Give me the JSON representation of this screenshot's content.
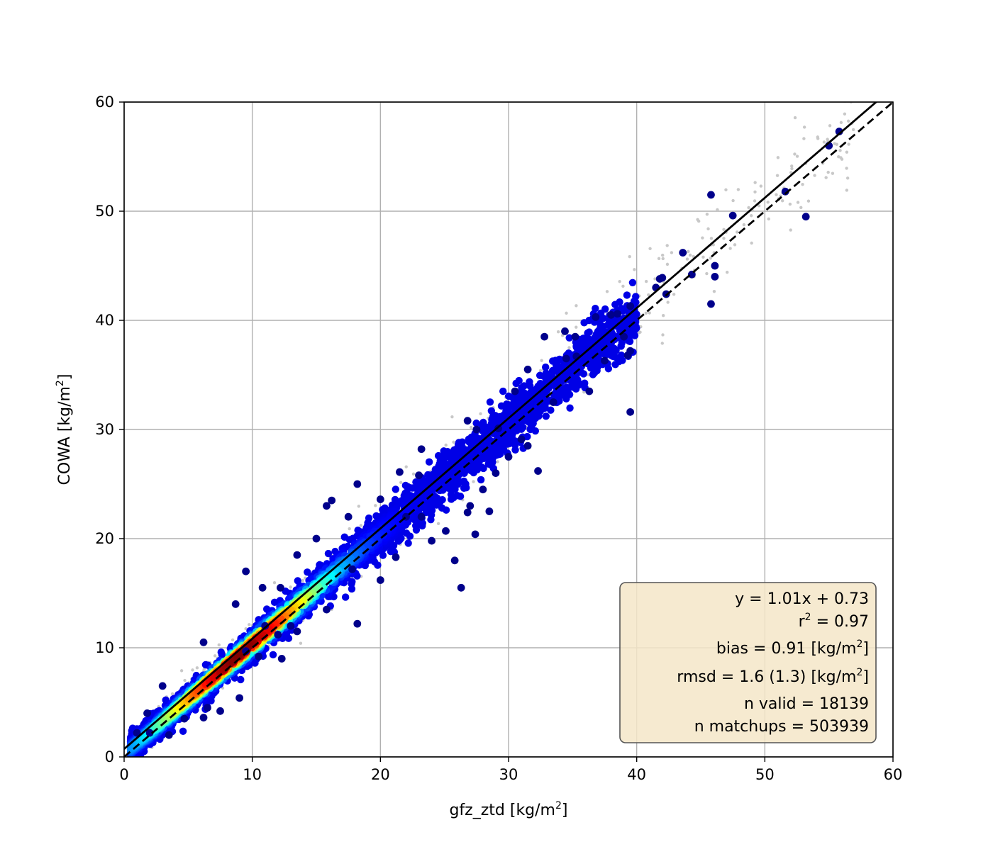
{
  "chart_data": {
    "type": "scatter",
    "title": "",
    "xlabel": "gfz_ztd [kg/m",
    "xlabel_sup": "2",
    "xlabel_suffix": "]",
    "ylabel": "COWA [kg/m",
    "ylabel_sup": "2",
    "ylabel_suffix": "]",
    "xlim": [
      0,
      60
    ],
    "ylim": [
      0,
      60
    ],
    "x_ticks": [
      0,
      10,
      20,
      30,
      40,
      50,
      60
    ],
    "y_ticks": [
      0,
      10,
      20,
      30,
      40,
      50,
      60
    ],
    "x_tick_labels": [
      "0",
      "10",
      "20",
      "30",
      "40",
      "50",
      "60"
    ],
    "y_tick_labels": [
      "0",
      "10",
      "20",
      "30",
      "40",
      "50",
      "60"
    ],
    "grid": true,
    "colormap": "jet (point density)",
    "background_points_color": "#c8c8c8",
    "fit_line": {
      "slope": 1.01,
      "intercept": 0.73,
      "style": "solid",
      "color": "#000000"
    },
    "identity_line": {
      "slope": 1.0,
      "intercept": 0.0,
      "style": "dashed",
      "color": "#000000"
    },
    "stats_box": {
      "background": "#f5e6c8",
      "location": "lower-right",
      "lines": [
        {
          "text": "y = 1.01x + 0.73 ",
          "sup": "",
          "after": ""
        },
        {
          "text": "r",
          "sup": "2",
          "after": " = 0.97"
        },
        {
          "text": "bias = 0.91 [kg/m",
          "sup": "2",
          "after": "]"
        },
        {
          "text": "rmsd = 1.6 (1.3) [kg/m",
          "sup": "2",
          "after": "]"
        },
        {
          "text": "n valid = 18139 ",
          "sup": "",
          "after": ""
        },
        {
          "text": "n matchups = 503939",
          "sup": "",
          "after": ""
        }
      ]
    },
    "series": [
      {
        "kind": "outlier points (dark blue)",
        "points": [
          [
            45.8,
            51.5
          ],
          [
            47.5,
            49.6
          ],
          [
            51.6,
            51.8
          ],
          [
            53.2,
            49.5
          ],
          [
            55.0,
            56.0
          ],
          [
            55.8,
            57.3
          ],
          [
            43.6,
            46.2
          ],
          [
            44.3,
            44.2
          ],
          [
            46.1,
            45.0
          ],
          [
            46.1,
            44.0
          ],
          [
            45.8,
            41.5
          ],
          [
            42.3,
            42.4
          ],
          [
            41.8,
            43.8
          ],
          [
            42.0,
            43.9
          ],
          [
            41.5,
            43.0
          ],
          [
            39.5,
            41.3
          ],
          [
            38.5,
            40.6
          ],
          [
            38.0,
            40.5
          ],
          [
            36.8,
            40.3
          ],
          [
            34.4,
            39.0
          ],
          [
            35.2,
            38.5
          ],
          [
            39.5,
            37.2
          ],
          [
            39.0,
            38.5
          ],
          [
            39.3,
            36.8
          ],
          [
            37.5,
            36.3
          ],
          [
            35.3,
            36.7
          ],
          [
            36.3,
            33.5
          ],
          [
            39.5,
            31.6
          ],
          [
            32.3,
            26.2
          ],
          [
            31.0,
            29.1
          ],
          [
            29.2,
            30.1
          ],
          [
            26.8,
            30.8
          ],
          [
            23.2,
            28.2
          ],
          [
            23.0,
            25.8
          ],
          [
            21.5,
            26.1
          ],
          [
            18.2,
            25.0
          ],
          [
            16.2,
            23.5
          ],
          [
            15.8,
            23.0
          ],
          [
            17.5,
            22.0
          ],
          [
            20.0,
            23.6
          ],
          [
            22.0,
            22.0
          ],
          [
            23.2,
            22.0
          ],
          [
            25.1,
            20.7
          ],
          [
            26.8,
            22.4
          ],
          [
            27.4,
            20.4
          ],
          [
            28.5,
            22.5
          ],
          [
            25.8,
            18.0
          ],
          [
            26.3,
            15.5
          ],
          [
            24.0,
            19.8
          ],
          [
            21.2,
            18.3
          ],
          [
            20.0,
            16.2
          ],
          [
            17.8,
            17.2
          ],
          [
            18.2,
            12.2
          ],
          [
            15.8,
            13.5
          ],
          [
            13.5,
            11.5
          ],
          [
            13.0,
            12.0
          ],
          [
            12.0,
            11.2
          ],
          [
            11.0,
            12.0
          ],
          [
            12.3,
            9.0
          ],
          [
            10.5,
            9.2
          ],
          [
            9.5,
            9.7
          ],
          [
            9.0,
            5.4
          ],
          [
            7.5,
            4.2
          ],
          [
            6.5,
            4.5
          ],
          [
            6.2,
            3.6
          ],
          [
            4.7,
            3.5
          ],
          [
            3.5,
            2.0
          ],
          [
            2.0,
            2.2
          ],
          [
            1.0,
            2.2
          ],
          [
            1.8,
            4.0
          ],
          [
            3.0,
            6.5
          ],
          [
            6.2,
            10.5
          ],
          [
            8.7,
            14.0
          ],
          [
            9.5,
            17.0
          ],
          [
            10.8,
            15.5
          ],
          [
            12.2,
            15.5
          ],
          [
            13.5,
            18.5
          ],
          [
            15.0,
            20.0
          ],
          [
            27.5,
            30.0
          ],
          [
            30.5,
            33.5
          ],
          [
            31.5,
            35.5
          ],
          [
            32.8,
            38.5
          ],
          [
            34.5,
            36.5
          ],
          [
            33.5,
            32.5
          ],
          [
            31.5,
            28.5
          ],
          [
            30.0,
            27.5
          ],
          [
            29.0,
            26.0
          ],
          [
            28.0,
            24.5
          ],
          [
            27.0,
            23.0
          ]
        ]
      }
    ],
    "density_band": {
      "description": "dense colored cloud along fit line, red/yellow core at x≈3–16",
      "x_range": [
        0.5,
        40
      ]
    }
  }
}
